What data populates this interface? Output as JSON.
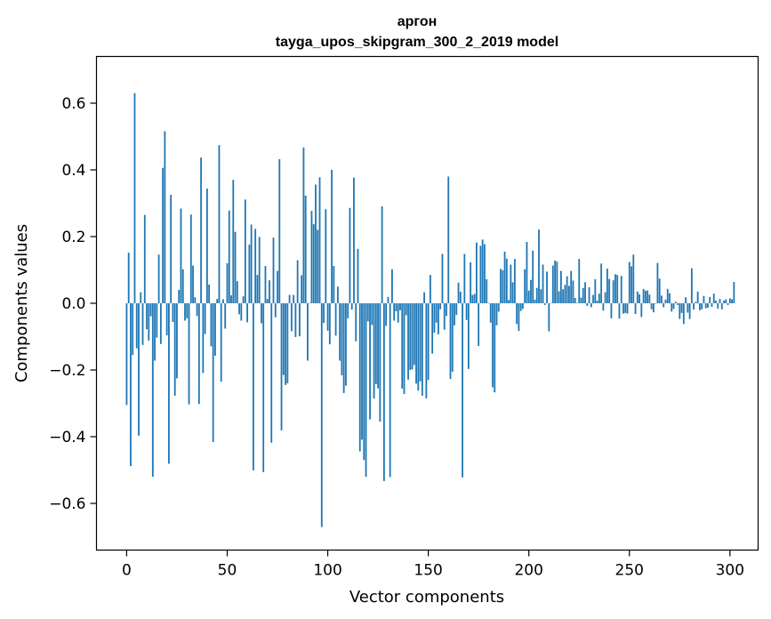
{
  "chart_data": {
    "type": "bar",
    "title_line1": "аргон",
    "title_line2": "tayga_upos_skipgram_300_2_2019 model",
    "xlabel": "Vector components",
    "ylabel": "Components values",
    "xlim": [
      -15,
      314
    ],
    "ylim": [
      -0.74,
      0.74
    ],
    "xticks": [
      0,
      50,
      100,
      150,
      200,
      250,
      300
    ],
    "yticks": [
      -0.6,
      -0.4,
      -0.2,
      0.0,
      0.2,
      0.4,
      0.6
    ],
    "ytick_labels": [
      "−0.6",
      "−0.4",
      "−0.2",
      "0.0",
      "0.2",
      "0.4",
      "0.6"
    ],
    "bar_color": "#1f77b4",
    "grid": false,
    "values": [
      -0.305,
      0.152,
      -0.488,
      -0.155,
      0.63,
      -0.135,
      -0.397,
      0.033,
      -0.125,
      0.265,
      -0.078,
      -0.112,
      -0.039,
      -0.52,
      -0.172,
      -0.103,
      0.146,
      -0.122,
      0.406,
      0.516,
      -0.096,
      -0.481,
      0.325,
      -0.056,
      -0.277,
      -0.225,
      0.04,
      0.284,
      0.102,
      -0.052,
      -0.045,
      -0.303,
      0.266,
      0.113,
      0.018,
      -0.038,
      -0.302,
      0.437,
      -0.209,
      -0.092,
      0.344,
      0.056,
      -0.129,
      -0.416,
      -0.157,
      0.013,
      0.474,
      -0.235,
      0.012,
      -0.076,
      0.12,
      0.278,
      0.024,
      0.37,
      0.214,
      0.066,
      -0.033,
      -0.052,
      0.021,
      0.311,
      -0.057,
      0.176,
      0.236,
      -0.501,
      0.223,
      0.085,
      0.199,
      -0.06,
      -0.506,
      0.112,
      0.013,
      0.069,
      -0.418,
      0.197,
      -0.042,
      0.097,
      0.432,
      -0.381,
      -0.215,
      -0.245,
      -0.24,
      0.025,
      -0.084,
      0.025,
      -0.101,
      0.129,
      -0.099,
      0.084,
      0.467,
      0.323,
      -0.172,
      0.001,
      0.277,
      0.237,
      0.356,
      0.22,
      0.378,
      -0.671,
      -0.059,
      0.282,
      -0.082,
      -0.123,
      0.4,
      0.112,
      -0.097,
      0.05,
      -0.172,
      -0.216,
      -0.269,
      -0.247,
      -0.045,
      0.286,
      -0.019,
      0.377,
      -0.114,
      0.163,
      -0.444,
      -0.409,
      -0.47,
      -0.52,
      -0.054,
      -0.348,
      -0.065,
      -0.286,
      -0.242,
      -0.255,
      -0.355,
      0.291,
      -0.533,
      -0.068,
      0.019,
      -0.521,
      0.102,
      -0.052,
      -0.024,
      -0.058,
      -0.021,
      -0.256,
      -0.272,
      -0.036,
      -0.229,
      -0.2,
      -0.198,
      -0.185,
      -0.241,
      -0.262,
      -0.234,
      -0.277,
      0.033,
      -0.285,
      -0.23,
      0.085,
      -0.151,
      -0.088,
      -0.058,
      -0.093,
      -0.018,
      0.148,
      -0.079,
      -0.038,
      0.38,
      -0.227,
      -0.205,
      -0.066,
      -0.035,
      0.062,
      0.035,
      -0.522,
      0.148,
      -0.05,
      -0.197,
      0.123,
      0.025,
      0.028,
      0.182,
      -0.128,
      0.172,
      0.191,
      0.177,
      0.072,
      0.001,
      -0.058,
      -0.252,
      -0.267,
      -0.066,
      -0.025,
      0.103,
      0.099,
      0.155,
      0.134,
      0.01,
      0.116,
      0.063,
      0.133,
      -0.062,
      -0.083,
      -0.023,
      -0.017,
      0.102,
      0.184,
      0.038,
      0.07,
      0.158,
      0.011,
      0.046,
      0.221,
      0.042,
      0.116,
      -0.005,
      0.095,
      -0.084,
      0.001,
      0.113,
      0.128,
      0.125,
      0.036,
      0.097,
      0.042,
      0.055,
      0.081,
      0.052,
      0.097,
      0.068,
      0.016,
      0.001,
      0.133,
      0.017,
      0.046,
      0.063,
      -0.008,
      0.048,
      -0.012,
      0.025,
      0.072,
      0.008,
      0.029,
      0.119,
      -0.022,
      0.033,
      0.104,
      0.073,
      -0.045,
      0.069,
      0.087,
      0.085,
      -0.046,
      0.082,
      -0.031,
      -0.029,
      -0.031,
      0.124,
      0.111,
      0.146,
      -0.032,
      0.035,
      0.027,
      -0.041,
      0.043,
      0.038,
      0.038,
      0.026,
      -0.018,
      -0.027,
      -0.001,
      0.121,
      0.074,
      0.023,
      -0.012,
      0.011,
      0.043,
      0.03,
      -0.025,
      -0.017,
      0.005,
      -0.005,
      -0.047,
      -0.029,
      -0.062,
      0.018,
      -0.028,
      -0.047,
      0.105,
      -0.019,
      0.004,
      0.035,
      -0.021,
      -0.018,
      0.022,
      -0.015,
      -0.013,
      0.019,
      -0.011,
      0.029,
      0.008,
      -0.016,
      0.013,
      -0.018,
      0.008,
      0.012,
      -0.005,
      0.015,
      0.012,
      0.064
    ]
  }
}
